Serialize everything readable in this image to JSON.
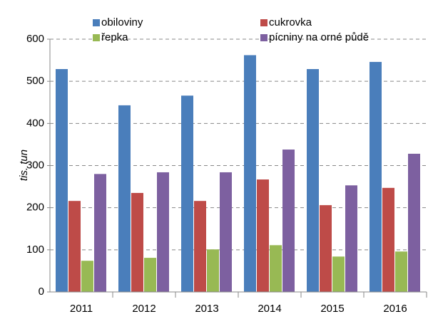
{
  "chart_data": {
    "type": "bar",
    "y_label": "tis. tun",
    "categories": [
      "2011",
      "2012",
      "2013",
      "2014",
      "2015",
      "2016"
    ],
    "series": [
      {
        "name": "obiloviny",
        "color": "#4a7ebb",
        "values": [
          529,
          443,
          466,
          562,
          529,
          546
        ]
      },
      {
        "name": "cukrovka",
        "color": "#be4b48",
        "values": [
          216,
          235,
          216,
          267,
          206,
          247
        ]
      },
      {
        "name": "řepka",
        "color": "#98b954",
        "values": [
          74,
          81,
          101,
          111,
          84,
          96
        ]
      },
      {
        "name": "pícniny na orné půdě",
        "color": "#7d60a0",
        "values": [
          280,
          284,
          284,
          338,
          253,
          328
        ]
      }
    ],
    "ylim": [
      0,
      600
    ],
    "yticks": [
      0,
      100,
      200,
      300,
      400,
      500,
      600
    ],
    "grid": true
  }
}
